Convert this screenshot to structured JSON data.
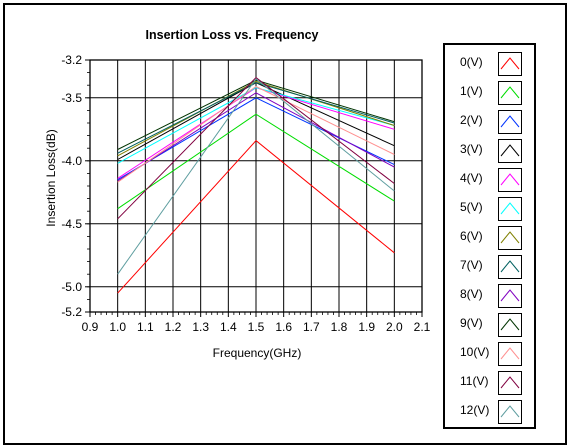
{
  "chart_data": {
    "type": "line",
    "title": "Insertion Loss vs. Frequency",
    "xlabel": "Frequency(GHz)",
    "ylabel": "Insertion Loss(dB)",
    "xlim": [
      0.9,
      2.1
    ],
    "ylim": [
      -5.2,
      -3.2
    ],
    "x_ticks": [
      "0.9",
      "1.0",
      "1.1",
      "1.2",
      "1.3",
      "1.4",
      "1.5",
      "1.6",
      "1.7",
      "1.8",
      "1.9",
      "2.0",
      "2.1"
    ],
    "y_ticks": [
      "-3.2",
      "-3.5",
      "-4.0",
      "-4.5",
      "-5.0",
      "-5.2"
    ],
    "grid": true,
    "legend_position": "right",
    "x": [
      1.0,
      1.5,
      2.0
    ],
    "series": [
      {
        "name": "0(V)",
        "color": "#ff0000",
        "values": [
          -5.05,
          -3.84,
          -4.73
        ]
      },
      {
        "name": "1(V)",
        "color": "#00dd00",
        "values": [
          -4.38,
          -3.63,
          -4.32
        ]
      },
      {
        "name": "2(V)",
        "color": "#0033ff",
        "values": [
          -4.15,
          -3.5,
          -4.03
        ]
      },
      {
        "name": "3(V)",
        "color": "#000000",
        "values": [
          -3.99,
          -3.38,
          -3.88
        ]
      },
      {
        "name": "4(V)",
        "color": "#ff00ff",
        "values": [
          -4.14,
          -3.42,
          -3.75
        ]
      },
      {
        "name": "5(V)",
        "color": "#00ffff",
        "values": [
          -4.02,
          -3.42,
          -3.72
        ]
      },
      {
        "name": "6(V)",
        "color": "#808000",
        "values": [
          -3.96,
          -3.37,
          -3.72
        ]
      },
      {
        "name": "7(V)",
        "color": "#006060",
        "values": [
          -3.94,
          -3.38,
          -3.7
        ]
      },
      {
        "name": "8(V)",
        "color": "#8000c0",
        "values": [
          -4.16,
          -3.46,
          -4.05
        ]
      },
      {
        "name": "9(V)",
        "color": "#003300",
        "values": [
          -3.91,
          -3.36,
          -3.69
        ]
      },
      {
        "name": "10(V)",
        "color": "#ff9090",
        "values": [
          -4.17,
          -3.41,
          -3.95
        ]
      },
      {
        "name": "11(V)",
        "color": "#800040",
        "values": [
          -4.46,
          -3.34,
          -4.18
        ]
      },
      {
        "name": "12(V)",
        "color": "#5f9ea0",
        "values": [
          -4.9,
          -3.35,
          -4.24
        ]
      }
    ]
  }
}
